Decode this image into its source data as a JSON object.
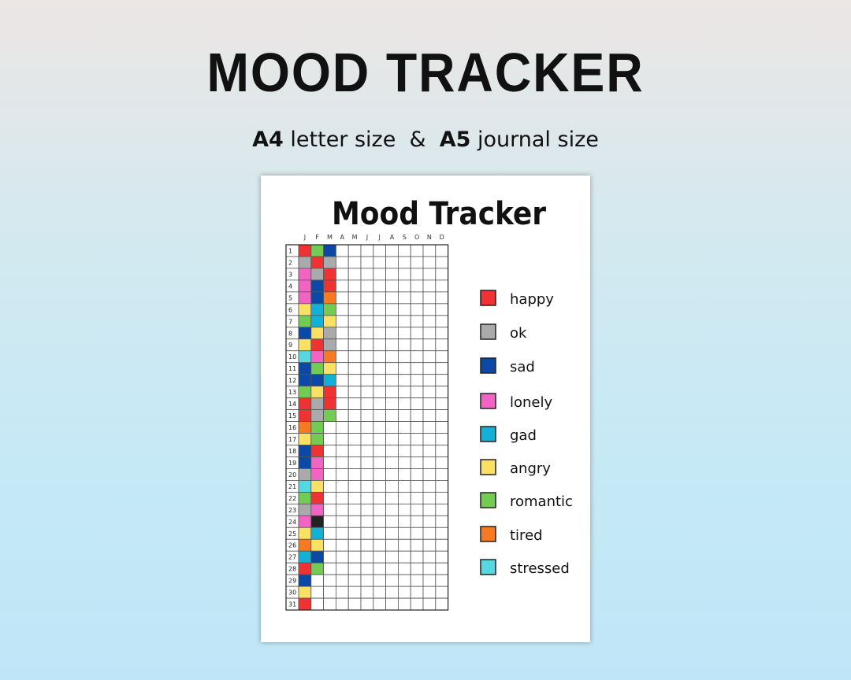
{
  "header": {
    "title": "MOOD TRACKER",
    "subtitle": [
      {
        "text": "A4",
        "bold": true
      },
      {
        "text": " letter size  &  ",
        "bold": false
      },
      {
        "text": "A5",
        "bold": true
      },
      {
        "text": " journal size",
        "bold": false
      }
    ]
  },
  "sheet": {
    "title": "Mood Tracker",
    "months": [
      "J",
      "F",
      "M",
      "A",
      "M",
      "J",
      "J",
      "A",
      "S",
      "O",
      "N",
      "D"
    ],
    "days": [
      1,
      2,
      3,
      4,
      5,
      6,
      7,
      8,
      9,
      10,
      11,
      12,
      13,
      14,
      15,
      16,
      17,
      18,
      19,
      20,
      21,
      22,
      23,
      24,
      25,
      26,
      27,
      28,
      29,
      30,
      31
    ],
    "cells": [
      [
        "#f03232",
        "#aaaaaa",
        "#f264c4",
        "#f264c4",
        "#f264c4",
        "#fae164",
        "#72cc52",
        "#0c48a6",
        "#fae164",
        "#56d8e2",
        "#0c48a6",
        "#0c48a6",
        "#72cc52",
        "#f03232",
        "#f03232",
        "#f77a22",
        "#fae164",
        "#0c48a6",
        "#0c48a6",
        "#aaaaaa",
        "#56d8e2",
        "#72cc52",
        "#aaaaaa",
        "#f264c4",
        "#fae164",
        "#f77a22",
        "#12b2d8",
        "#f03232",
        "#0c48a6",
        "#fae164",
        "#f03232"
      ],
      [
        "#72cc52",
        "#f03232",
        "#aaaaaa",
        "#0c48a6",
        "#0c48a6",
        "#12b2d8",
        "#12b2d8",
        "#fae164",
        "#f03232",
        "#f264c4",
        "#72cc52",
        "#0c48a6",
        "#fae164",
        "#aaaaaa",
        "#aaaaaa",
        "#72cc52",
        "#72cc52",
        "#f03232",
        "#f264c4",
        "#f264c4",
        "#fae164",
        "#f03232",
        "#f264c4",
        "#222222",
        "#12b2d8",
        "#fae164",
        "#0c48a6",
        "#72cc52",
        null,
        null,
        null
      ],
      [
        "#0c48a6",
        "#aaaaaa",
        "#f03232",
        "#f03232",
        "#f77a22",
        "#72cc52",
        "#fae164",
        "#aaaaaa",
        "#aaaaaa",
        "#f77a22",
        "#fae164",
        "#12b2d8",
        "#f03232",
        "#f03232",
        "#72cc52",
        null,
        null,
        null,
        null,
        null,
        null,
        null,
        null,
        null,
        null,
        null,
        null,
        null,
        null,
        null,
        null
      ]
    ],
    "legend": [
      {
        "label": "happy",
        "color": "#f03232"
      },
      {
        "label": "ok",
        "color": "#aaaaaa"
      },
      {
        "label": "sad",
        "color": "#0c48a6"
      },
      {
        "label": "lonely",
        "color": "#f264c4"
      },
      {
        "label": "gad",
        "color": "#12b2d8"
      },
      {
        "label": "angry",
        "color": "#fae164"
      },
      {
        "label": "romantic",
        "color": "#72cc52"
      },
      {
        "label": "tired",
        "color": "#f77a22"
      },
      {
        "label": "stressed",
        "color": "#56d8e2"
      }
    ]
  }
}
